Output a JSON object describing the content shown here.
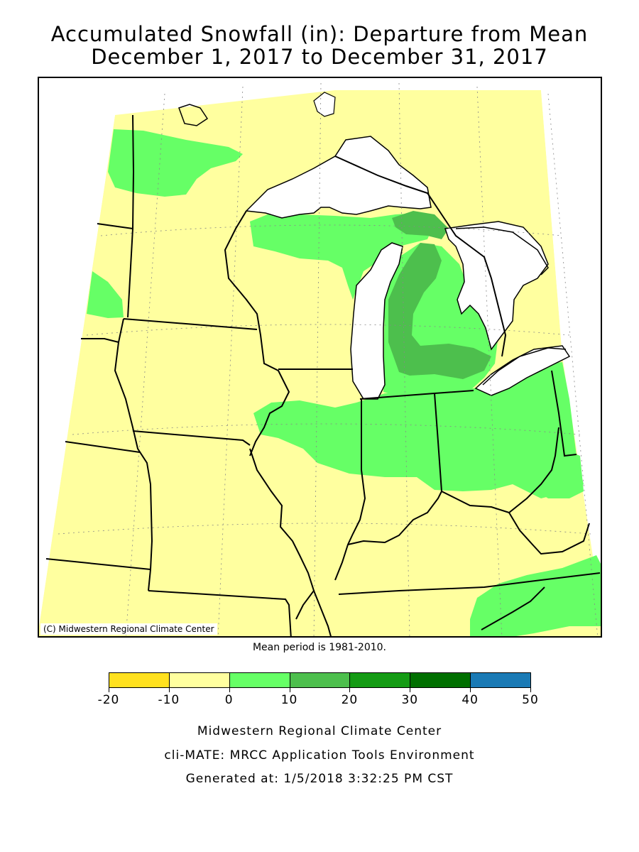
{
  "title": {
    "line1": "Accumulated Snowfall (in): Departure from Mean",
    "line2": "December 1, 2017 to December 31, 2017"
  },
  "map": {
    "copyright": "(C) Midwestern Regional Climate Center",
    "colors": {
      "water": "#ffffff",
      "minus20_to_minus10": "#ffe11f",
      "minus10_to_0": "#ffff9f",
      "0_to_10": "#66ff66",
      "10_to_20": "#4dbf4d",
      "20_to_30": "#149b14",
      "30_to_40": "#006f00",
      "40_to_50": "#1a7ab5"
    }
  },
  "mean_period": "Mean period is 1981-2010.",
  "legend": {
    "bins": [
      {
        "from": -20,
        "to": -10,
        "color": "#ffe11f"
      },
      {
        "from": -10,
        "to": 0,
        "color": "#ffff9f"
      },
      {
        "from": 0,
        "to": 10,
        "color": "#66ff66"
      },
      {
        "from": 10,
        "to": 20,
        "color": "#4dbf4d"
      },
      {
        "from": 20,
        "to": 30,
        "color": "#149b14"
      },
      {
        "from": 30,
        "to": 40,
        "color": "#006f00"
      },
      {
        "from": 40,
        "to": 50,
        "color": "#1a7ab5"
      }
    ],
    "labels": [
      "-20",
      "-10",
      "0",
      "10",
      "20",
      "30",
      "40",
      "50"
    ]
  },
  "footer": {
    "line1": "Midwestern Regional Climate Center",
    "line2": "cli-MATE: MRCC Application Tools Environment",
    "line3": "Generated at: 1/5/2018 3:32:25 PM CST"
  }
}
